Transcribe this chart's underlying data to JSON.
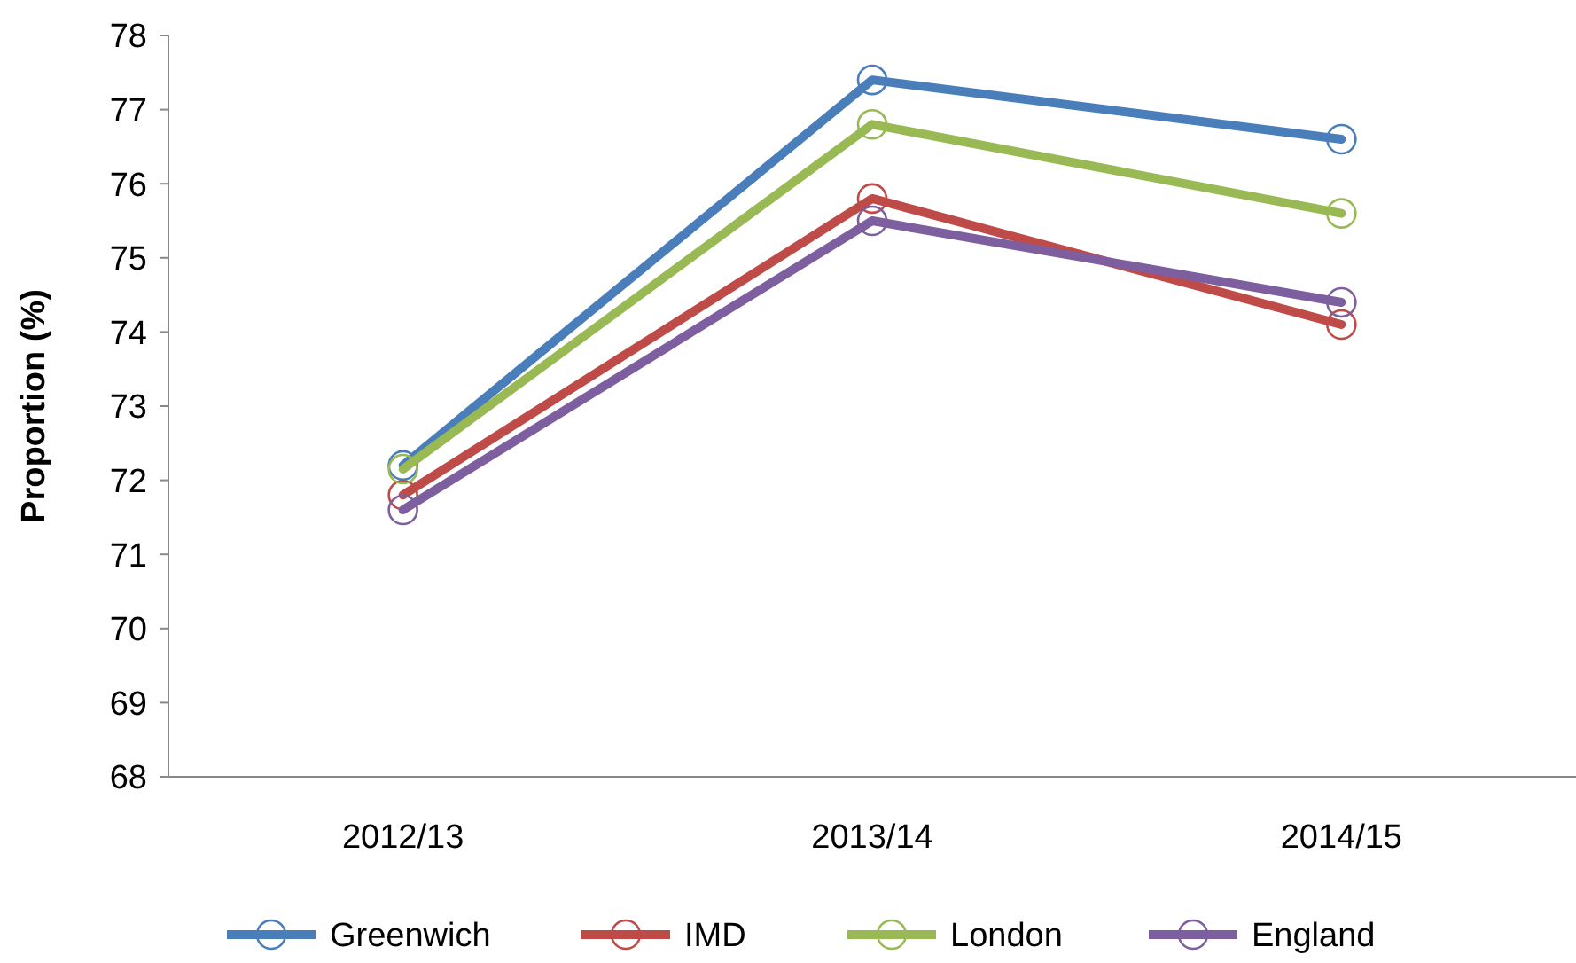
{
  "chart_data": {
    "type": "line",
    "ylabel": "Proportion (%)",
    "categories": [
      "2012/13",
      "2013/14",
      "2014/15"
    ],
    "series": [
      {
        "name": "Greenwich",
        "color": "#4a7ebb",
        "values": [
          72.2,
          77.4,
          76.6
        ]
      },
      {
        "name": "IMD",
        "color": "#be4b48",
        "values": [
          71.8,
          75.8,
          74.1
        ]
      },
      {
        "name": "London",
        "color": "#98b954",
        "values": [
          72.15,
          76.8,
          75.6
        ]
      },
      {
        "name": "England",
        "color": "#7d5fa0",
        "values": [
          71.6,
          75.5,
          74.4
        ]
      }
    ],
    "ylim": [
      68,
      78
    ],
    "yticks": [
      68,
      69,
      70,
      71,
      72,
      73,
      74,
      75,
      76,
      77,
      78
    ],
    "grid": false,
    "legend": "bottom",
    "marker": "circle",
    "line_style": "solid"
  }
}
